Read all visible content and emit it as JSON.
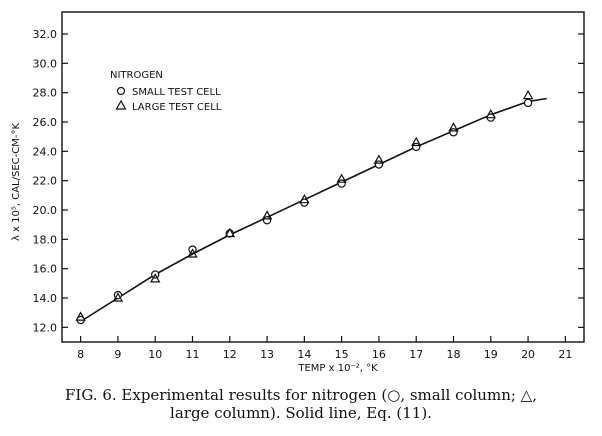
{
  "chart_data": {
    "type": "scatter",
    "title": "",
    "xlabel": "TEMP x 10⁻²,  °K",
    "ylabel": "λ x 10⁵, CAL/SEC-CM-°K",
    "xlim": [
      7.5,
      21.5
    ],
    "ylim": [
      11.0,
      33.5
    ],
    "x_ticks": [
      8,
      9,
      10,
      11,
      12,
      13,
      14,
      15,
      16,
      17,
      18,
      19,
      20,
      21
    ],
    "x_tick_labels": [
      "8",
      "9",
      "10",
      "11",
      "12",
      "13",
      "14",
      "15",
      "16",
      "17",
      "18",
      "19",
      "20",
      "21"
    ],
    "y_ticks": [
      12,
      14,
      16,
      18,
      20,
      22,
      24,
      26,
      28,
      30,
      32
    ],
    "y_tick_labels": [
      "12.0",
      "14.0",
      "16.0",
      "18.0",
      "20.0",
      "22.0",
      "24.0",
      "26.0",
      "28.0",
      "30.0",
      "32.0"
    ],
    "legend": {
      "title": "NITROGEN",
      "placement": "top-left",
      "entries": [
        {
          "marker": "circle",
          "label": "SMALL TEST CELL"
        },
        {
          "marker": "triangle",
          "label": "LARGE TEST CELL"
        }
      ]
    },
    "series": [
      {
        "name": "SMALL TEST CELL",
        "marker": "circle",
        "x": [
          8.0,
          9.0,
          10.0,
          11.0,
          12.0,
          13.0,
          14.0,
          15.0,
          16.0,
          17.0,
          18.0,
          19.0,
          20.0
        ],
        "y": [
          12.5,
          14.2,
          15.6,
          17.3,
          18.4,
          19.3,
          20.5,
          21.8,
          23.1,
          24.3,
          25.3,
          26.3,
          27.3
        ]
      },
      {
        "name": "LARGE TEST CELL",
        "marker": "triangle",
        "x": [
          8.0,
          9.0,
          10.0,
          11.0,
          12.0,
          13.0,
          14.0,
          15.0,
          16.0,
          17.0,
          18.0,
          19.0,
          20.0
        ],
        "y": [
          12.7,
          14.0,
          15.3,
          17.0,
          18.4,
          19.6,
          20.7,
          22.1,
          23.4,
          24.6,
          25.6,
          26.5,
          27.8
        ]
      }
    ],
    "fit_line": {
      "name": "Eq. (11)",
      "style": "solid",
      "x": [
        8.0,
        9.0,
        10.0,
        11.0,
        12.0,
        13.0,
        14.0,
        15.0,
        16.0,
        17.0,
        18.0,
        19.0,
        20.0,
        20.5
      ],
      "y": [
        12.4,
        14.0,
        15.6,
        17.0,
        18.3,
        19.5,
        20.7,
        21.9,
        23.1,
        24.3,
        25.4,
        26.5,
        27.4,
        27.6
      ]
    }
  },
  "caption": {
    "line1": "FIG. 6. Experimental results for nitrogen (○, small column; △,",
    "line2": "large column). Solid line, Eq. (11)."
  }
}
